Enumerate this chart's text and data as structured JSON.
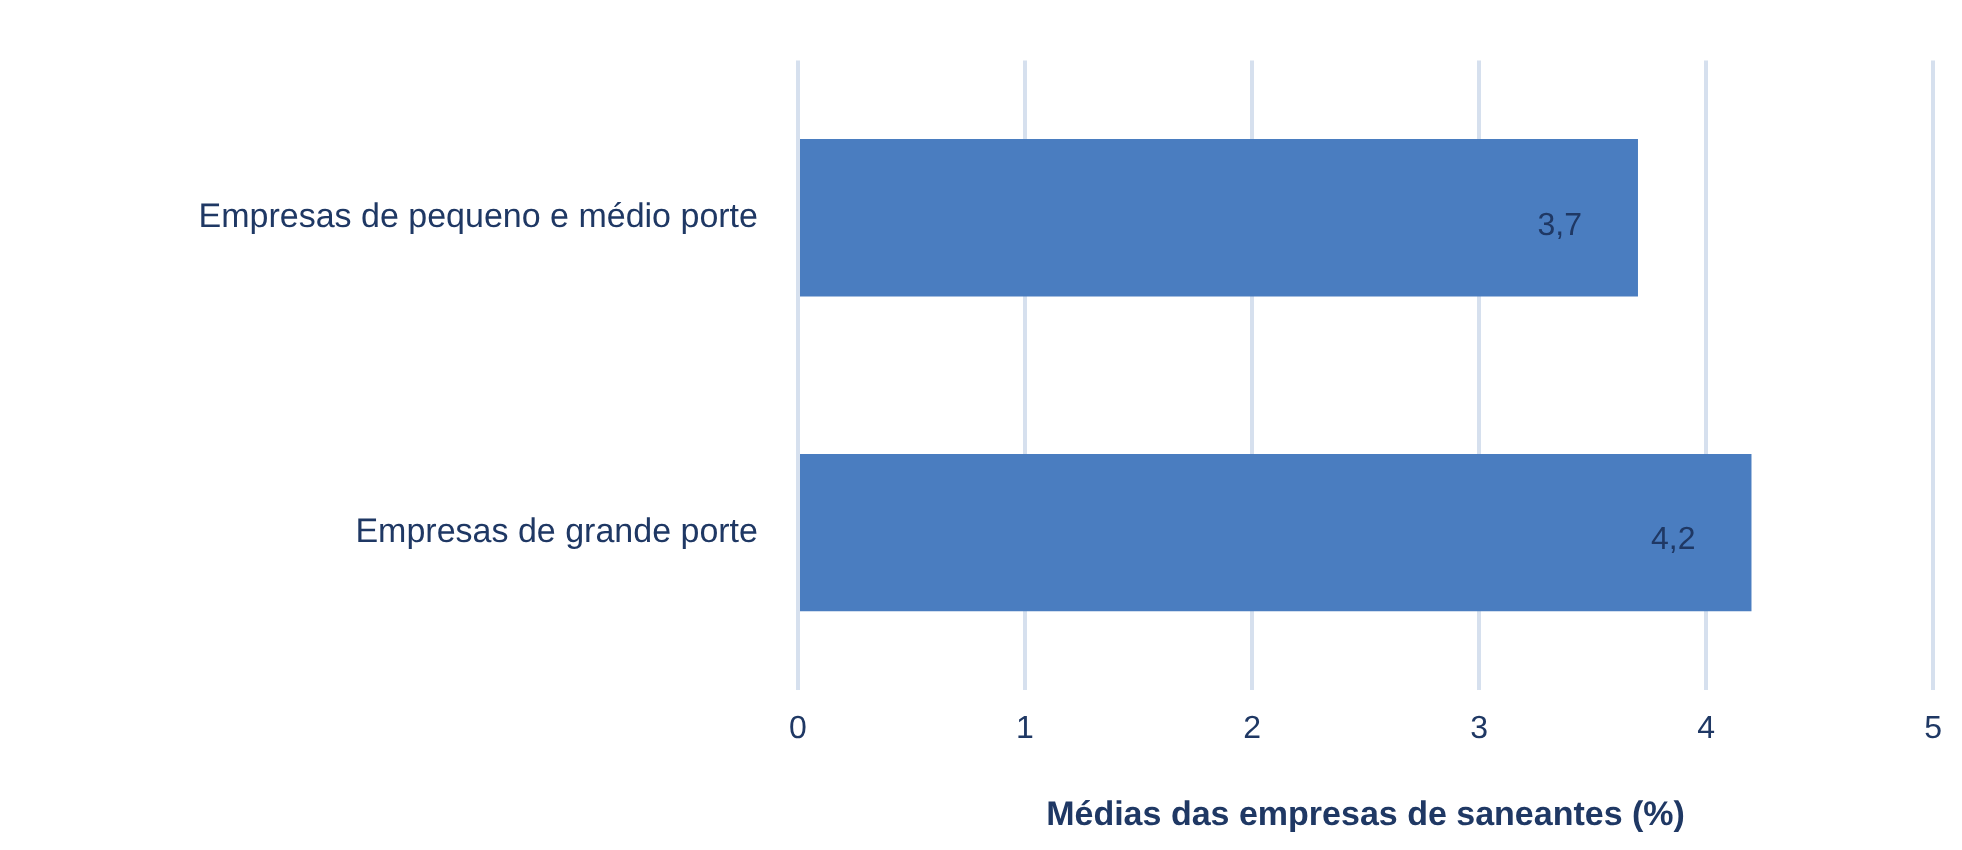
{
  "chart_data": {
    "type": "bar",
    "orientation": "horizontal",
    "categories": [
      "Empresas de pequeno e médio porte",
      "Empresas de grande porte"
    ],
    "values": [
      3.7,
      4.2
    ],
    "color": "#4a7dc0",
    "value_labels": [
      "3,7",
      "4,2"
    ],
    "xlabel": "Médias das empresas de saneantes (%)",
    "xlim": [
      0,
      5
    ],
    "xticks": [
      0,
      1,
      2,
      3,
      4,
      5
    ],
    "grid": "x",
    "legend": false
  }
}
